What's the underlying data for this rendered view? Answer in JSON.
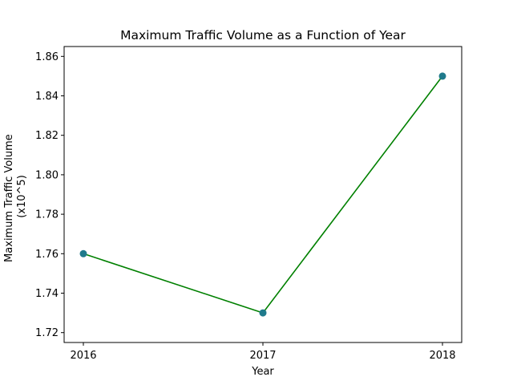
{
  "chart_data": {
    "type": "line",
    "title": "Maximum Traffic Volume as a Function of Year",
    "xlabel": "Year",
    "ylabel_lines": [
      "Maximum Traffic Volume",
      "(x10^5)"
    ],
    "x": [
      "2016",
      "2017",
      "2018"
    ],
    "series": [
      {
        "values": [
          1.76,
          1.73,
          1.85
        ]
      }
    ],
    "ylim": [
      1.715,
      1.865
    ],
    "yticks": [
      1.72,
      1.74,
      1.76,
      1.78,
      1.8,
      1.82,
      1.84,
      1.86
    ],
    "ytick_labels": [
      "1.72",
      "1.74",
      "1.76",
      "1.78",
      "1.80",
      "1.82",
      "1.84",
      "1.86"
    ],
    "grid": false,
    "line_color": "#008000",
    "marker_color": "#1f7a8c"
  }
}
